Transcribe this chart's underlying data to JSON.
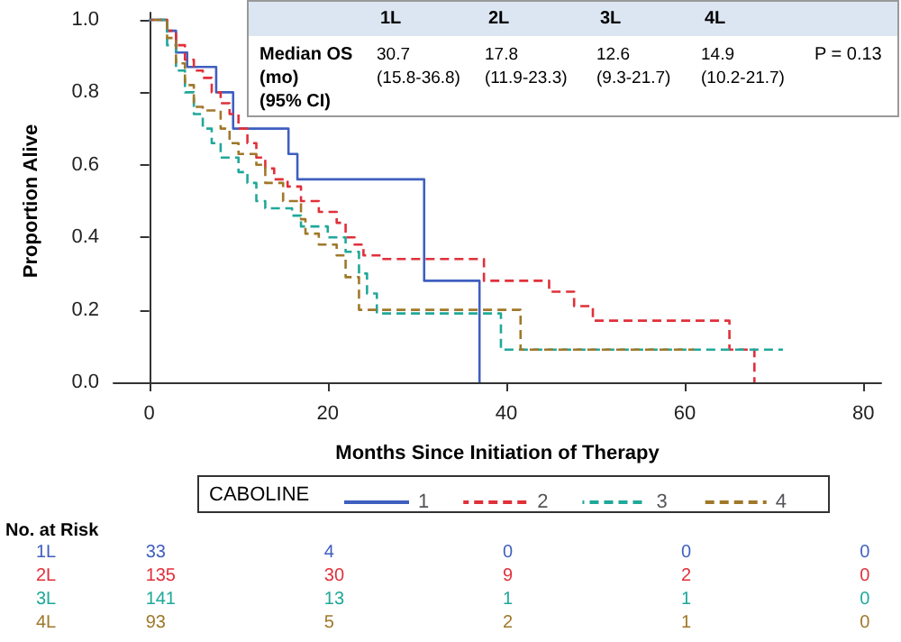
{
  "chart_data": {
    "type": "step",
    "xlabel": "Months Since Initiation of Therapy",
    "ylabel": "Proportion Alive",
    "legend_title": "CABOLINE",
    "legend": "bottom",
    "grid": false,
    "marker": "none",
    "xlim": [
      -4,
      82
    ],
    "xticks": [
      0,
      20,
      40,
      60,
      80
    ],
    "ylim": [
      -0.02,
      1.02
    ],
    "yticks": [
      {
        "value": 0,
        "label": "0.0"
      },
      {
        "value": 0.2,
        "label": "0.2"
      },
      {
        "value": 0.4,
        "label": "0.4"
      },
      {
        "value": 0.6,
        "label": "0.6"
      },
      {
        "value": 0.8,
        "label": "0.8"
      },
      {
        "value": 1,
        "label": "1.0"
      }
    ],
    "series": [
      {
        "name": "1",
        "color": "#3f5fbf",
        "line_style": "solid",
        "x": [
          0,
          2,
          3,
          4.25,
          7.5,
          9.4,
          15.6,
          16.6,
          23.5,
          30.8,
          37
        ],
        "values": [
          1,
          0.97,
          0.91,
          0.87,
          0.8,
          0.7,
          0.63,
          0.56,
          0.56,
          0.28,
          0
        ]
      },
      {
        "name": "2",
        "color": "#e0303a",
        "line_style": "dashed",
        "x": [
          0,
          2,
          3,
          4,
          5,
          6,
          7,
          8,
          9,
          10,
          11,
          12,
          13,
          14,
          15.5,
          17,
          19,
          21,
          22,
          23,
          24,
          26,
          35,
          37.5,
          44.8,
          47.6,
          49.7,
          65,
          67.8
        ],
        "values": [
          1,
          0.97,
          0.93,
          0.89,
          0.86,
          0.84,
          0.8,
          0.77,
          0.74,
          0.7,
          0.66,
          0.62,
          0.59,
          0.56,
          0.54,
          0.5,
          0.47,
          0.44,
          0.4,
          0.38,
          0.35,
          0.34,
          0.34,
          0.28,
          0.25,
          0.21,
          0.17,
          0.09,
          0
        ]
      },
      {
        "name": "3",
        "color": "#20a89a",
        "line_style": "dashed",
        "x": [
          0,
          2,
          3,
          4,
          5,
          6,
          7,
          8,
          10,
          11,
          12,
          13,
          16,
          17,
          20,
          22,
          23.5,
          24.4,
          25.5,
          39.4,
          71
        ],
        "values": [
          1,
          0.93,
          0.86,
          0.8,
          0.74,
          0.7,
          0.66,
          0.62,
          0.58,
          0.55,
          0.5,
          0.48,
          0.46,
          0.43,
          0.4,
          0.36,
          0.3,
          0.245,
          0.19,
          0.09,
          0.09
        ]
      },
      {
        "name": "4",
        "color": "#a0782a",
        "line_style": "dashed",
        "x": [
          0,
          2,
          3,
          4,
          5,
          6,
          8,
          9,
          10,
          12,
          13,
          15,
          17,
          17.5,
          19,
          21,
          22,
          23.5,
          41.6,
          61
        ],
        "values": [
          1,
          0.95,
          0.88,
          0.82,
          0.76,
          0.75,
          0.7,
          0.66,
          0.63,
          0.6,
          0.55,
          0.5,
          0.45,
          0.41,
          0.38,
          0.35,
          0.29,
          0.2,
          0.09,
          0.09
        ]
      }
    ],
    "annotations": [
      "1L",
      "2L",
      "3L",
      "4L",
      "Median OS\n(mo)\n(95% CI)",
      "30.7\n(15.8-36.8)",
      "17.8\n(11.9-23.3)",
      "12.6\n(9.3-21.7)",
      "14.9\n(10.2-21.7)",
      "P = 0.13",
      "No. at Risk",
      "1L 33 4 0 0 0",
      "2L 135 30 9 2 0",
      "3L 141 13 1 1 0",
      "4L 93 5 2 1 0"
    ]
  }
}
